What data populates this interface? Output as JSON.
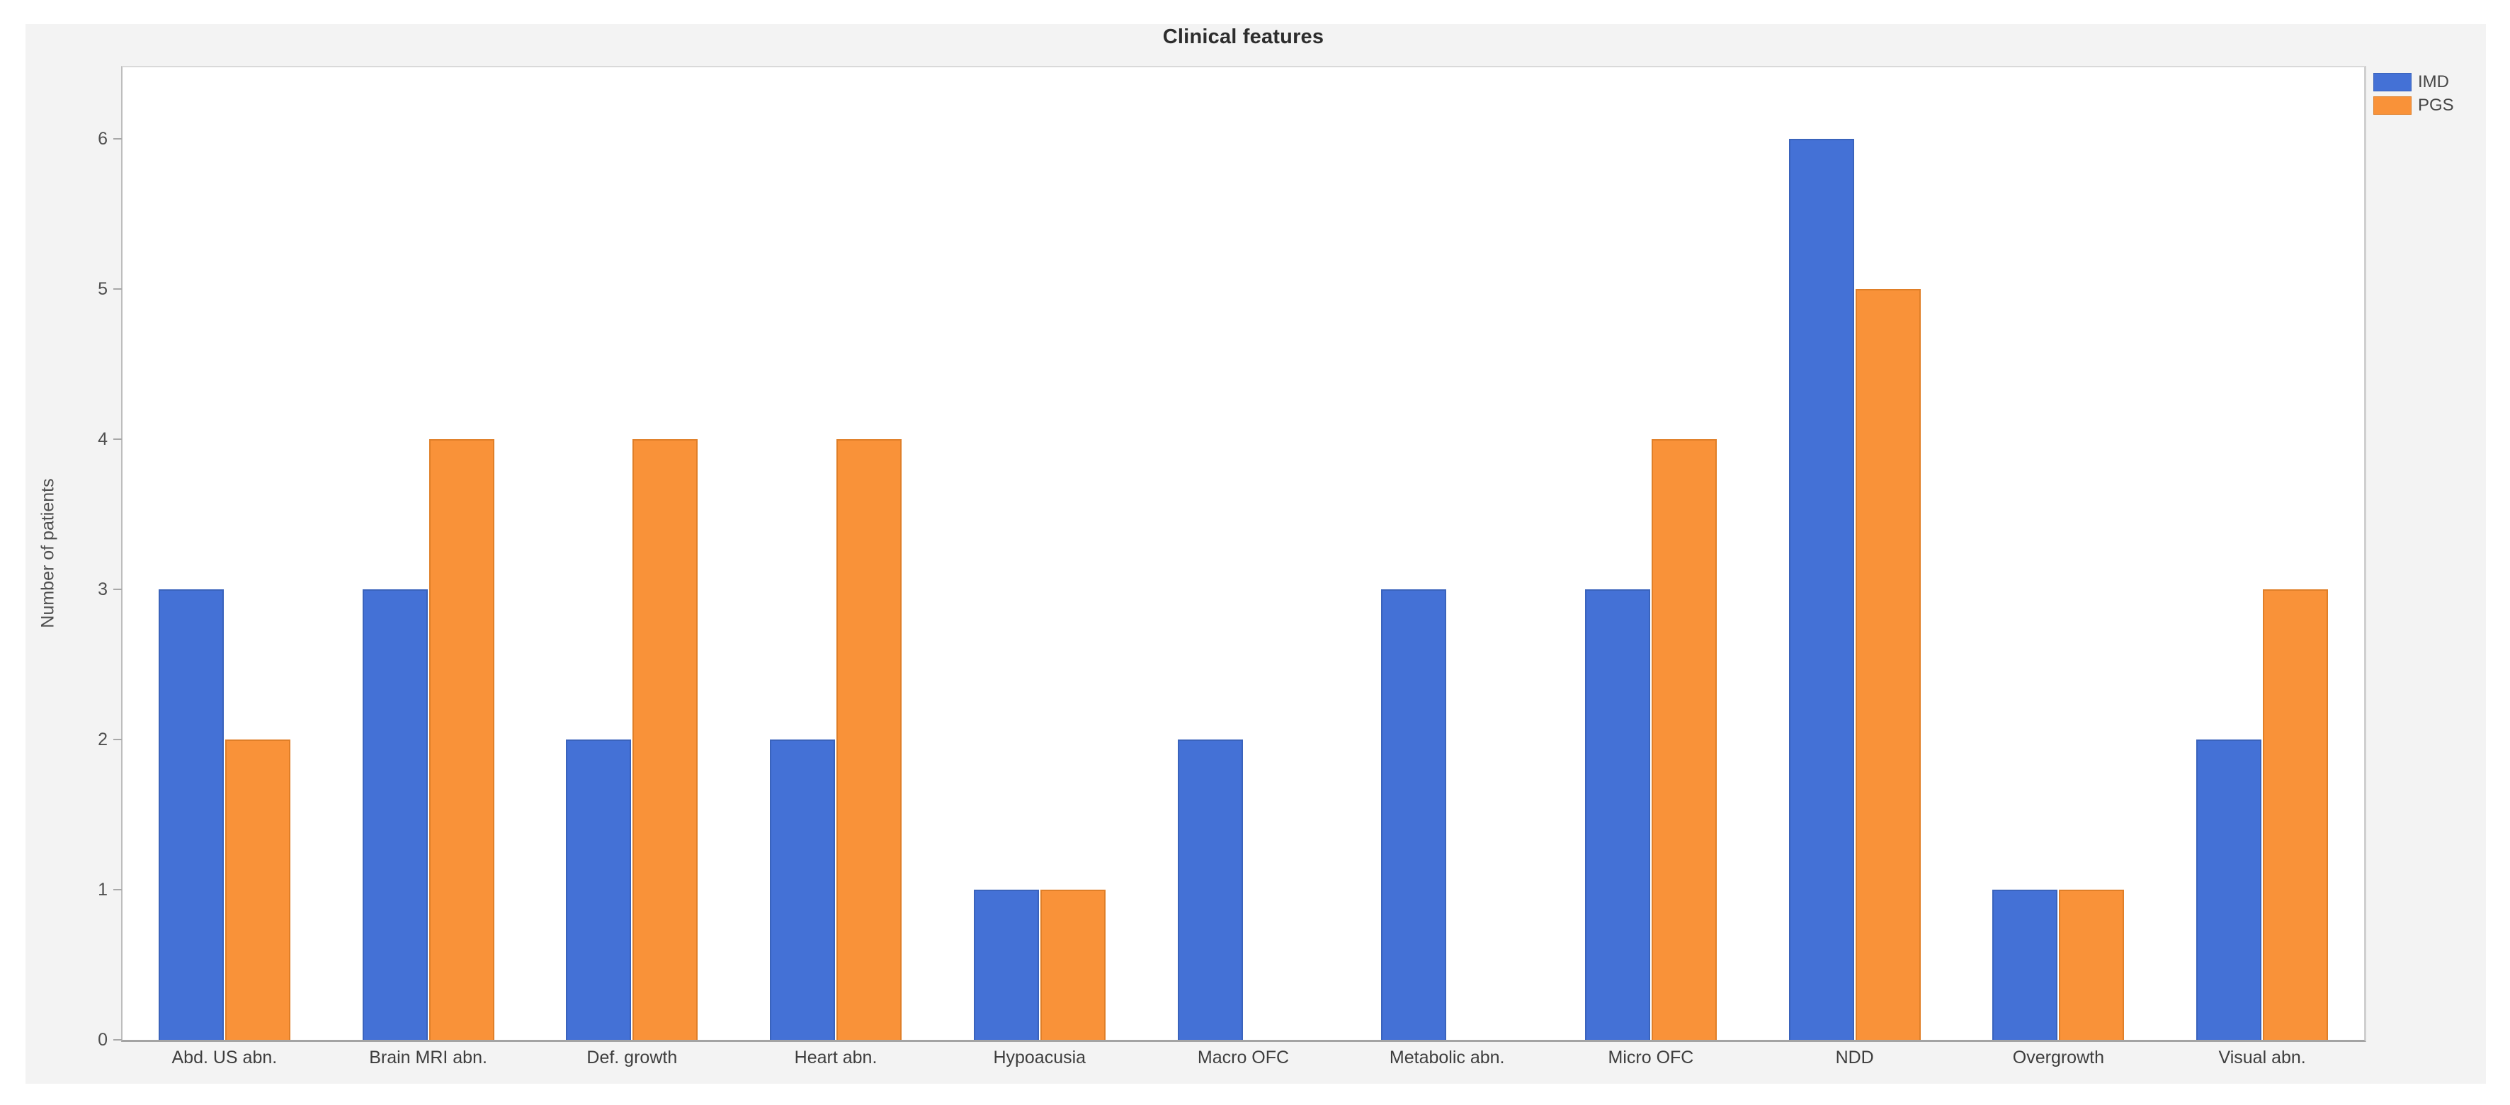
{
  "chart_data": {
    "type": "bar",
    "title": "Clinical features",
    "xlabel": "",
    "ylabel": "Number of patients",
    "ylim": [
      0,
      6.5
    ],
    "yticks": [
      0,
      1,
      2,
      3,
      4,
      5,
      6
    ],
    "grid": false,
    "legend_position": "top-right-outside",
    "categories": [
      "Abd. US abn.",
      "Brain MRI abn.",
      "Def. growth",
      "Heart abn.",
      "Hypoacusia",
      "Macro OFC",
      "Metabolic abn.",
      "Micro OFC",
      "NDD",
      "Overgrowth",
      "Visual abn."
    ],
    "series": [
      {
        "name": "IMD",
        "color": "#4471D6",
        "border_color": "#3A63BC",
        "values": [
          3,
          3,
          2,
          2,
          1,
          2,
          3,
          3,
          6,
          1,
          2
        ]
      },
      {
        "name": "PGS",
        "color": "#F99239",
        "border_color": "#E07F28",
        "values": [
          2,
          4,
          4,
          4,
          1,
          0,
          0,
          4,
          5,
          1,
          3
        ]
      }
    ]
  }
}
